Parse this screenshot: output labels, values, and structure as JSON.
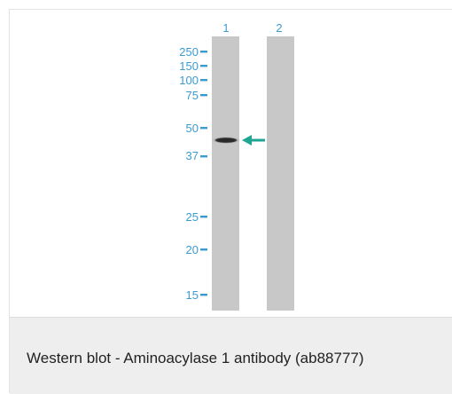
{
  "figure": {
    "lane_labels": [
      "1",
      "2"
    ],
    "marker_labels": [
      "250",
      "150",
      "100",
      "75",
      "50",
      "37",
      "25",
      "20",
      "15"
    ],
    "caption": "Western blot - Aminoacylase 1 antibody (ab88777)",
    "colors": {
      "lane_gray": "#c8c8c8",
      "label_blue": "#3a9bd0",
      "arrow_teal": "#1fa593",
      "band_dark": "#2a2a2a",
      "caption_bg": "#eeeeee"
    },
    "icons": {
      "band_arrow": "arrow-left-icon"
    }
  }
}
